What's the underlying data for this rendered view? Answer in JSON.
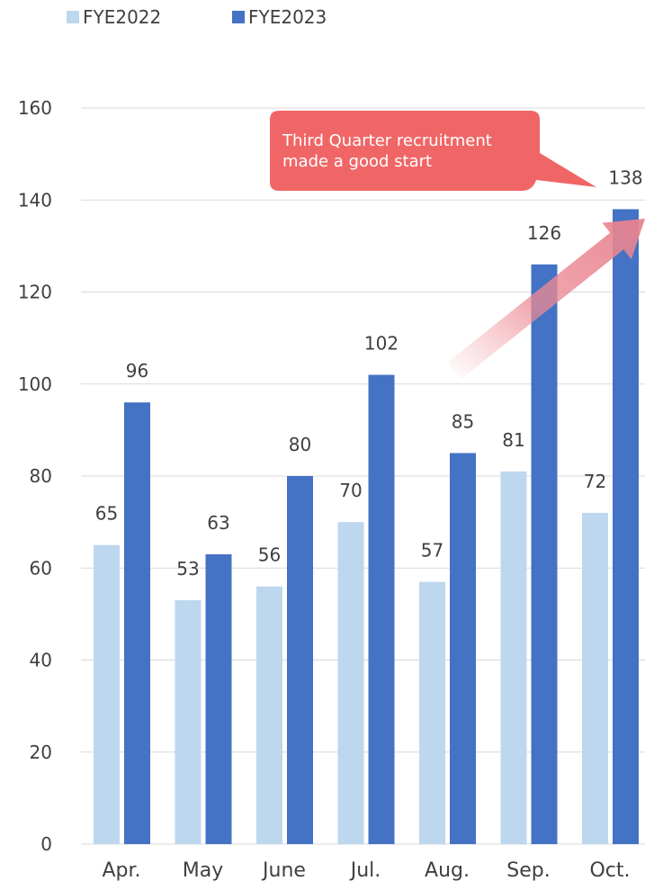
{
  "chart_data": {
    "type": "bar",
    "categories": [
      "Apr.",
      "May",
      "June",
      "Jul.",
      "Aug.",
      "Sep.",
      "Oct."
    ],
    "series": [
      {
        "name": "FYE2022",
        "values": [
          65,
          53,
          56,
          70,
          57,
          81,
          72
        ]
      },
      {
        "name": "FYE2023",
        "values": [
          96,
          63,
          80,
          102,
          85,
          126,
          138
        ]
      }
    ],
    "ylim": [
      0,
      160
    ],
    "yticks": [
      0,
      20,
      40,
      60,
      80,
      100,
      120,
      140,
      160
    ],
    "grid": true,
    "legend": "top-left",
    "colors": {
      "FYE2022": "#bdd7ee",
      "FYE2023": "#4472c4",
      "grid": "#d9d9d9",
      "callout": "#f06666",
      "arrow": "#e8838f"
    },
    "annotation": {
      "text_line1": "Third Quarter recruitment",
      "text_line2": "made a good start"
    }
  }
}
